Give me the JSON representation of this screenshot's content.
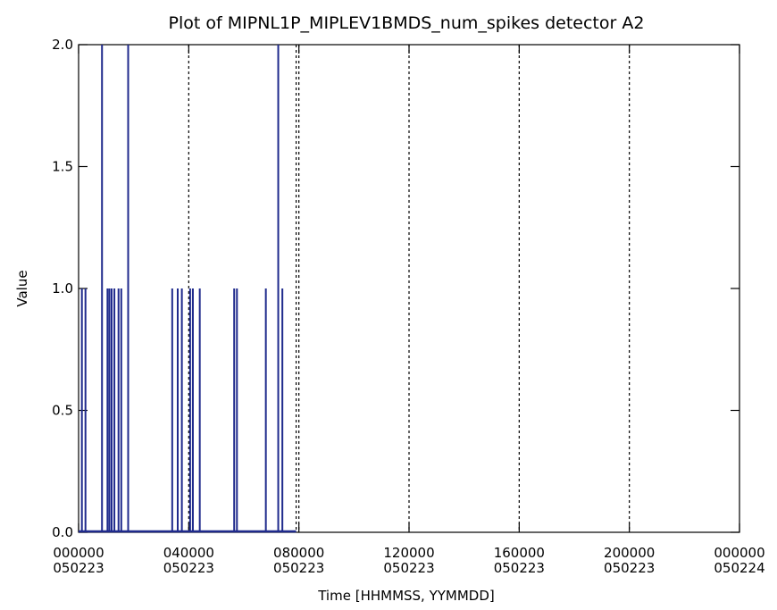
{
  "chart_data": {
    "type": "line",
    "title": "Plot of MIPNL1P_MIPLEV1BMDS_num_spikes detector A2",
    "xlabel": "Time [HHMMSS, YYMMDD]",
    "ylabel": "Value",
    "ylim": [
      0.0,
      2.0
    ],
    "xlim_hours": [
      0,
      24
    ],
    "y_ticks": [
      "0.0",
      "0.5",
      "1.0",
      "1.5",
      "2.0"
    ],
    "x_ticks": [
      {
        "time": "000000",
        "date": "050223"
      },
      {
        "time": "040000",
        "date": "050223"
      },
      {
        "time": "080000",
        "date": "050223"
      },
      {
        "time": "120000",
        "date": "050223"
      },
      {
        "time": "160000",
        "date": "050223"
      },
      {
        "time": "200000",
        "date": "050223"
      },
      {
        "time": "000000",
        "date": "050224"
      }
    ],
    "day_separators_hours": [
      4.0,
      8.0,
      12.0,
      16.0,
      20.0
    ],
    "data_end_hours": 7.9,
    "series_color": "#1f2a8c",
    "spikes_hours": [
      {
        "t": 0.12,
        "v": 1
      },
      {
        "t": 0.25,
        "v": 1
      },
      {
        "t": 0.85,
        "v": 2
      },
      {
        "t": 1.05,
        "v": 1
      },
      {
        "t": 1.12,
        "v": 1
      },
      {
        "t": 1.2,
        "v": 1
      },
      {
        "t": 1.3,
        "v": 1
      },
      {
        "t": 1.45,
        "v": 1
      },
      {
        "t": 1.55,
        "v": 1
      },
      {
        "t": 1.8,
        "v": 2
      },
      {
        "t": 3.4,
        "v": 1
      },
      {
        "t": 3.6,
        "v": 1
      },
      {
        "t": 3.75,
        "v": 1
      },
      {
        "t": 4.05,
        "v": 1
      },
      {
        "t": 4.15,
        "v": 1
      },
      {
        "t": 4.4,
        "v": 1
      },
      {
        "t": 5.65,
        "v": 1
      },
      {
        "t": 5.75,
        "v": 1
      },
      {
        "t": 6.8,
        "v": 1
      },
      {
        "t": 7.25,
        "v": 2
      },
      {
        "t": 7.4,
        "v": 1
      }
    ]
  }
}
